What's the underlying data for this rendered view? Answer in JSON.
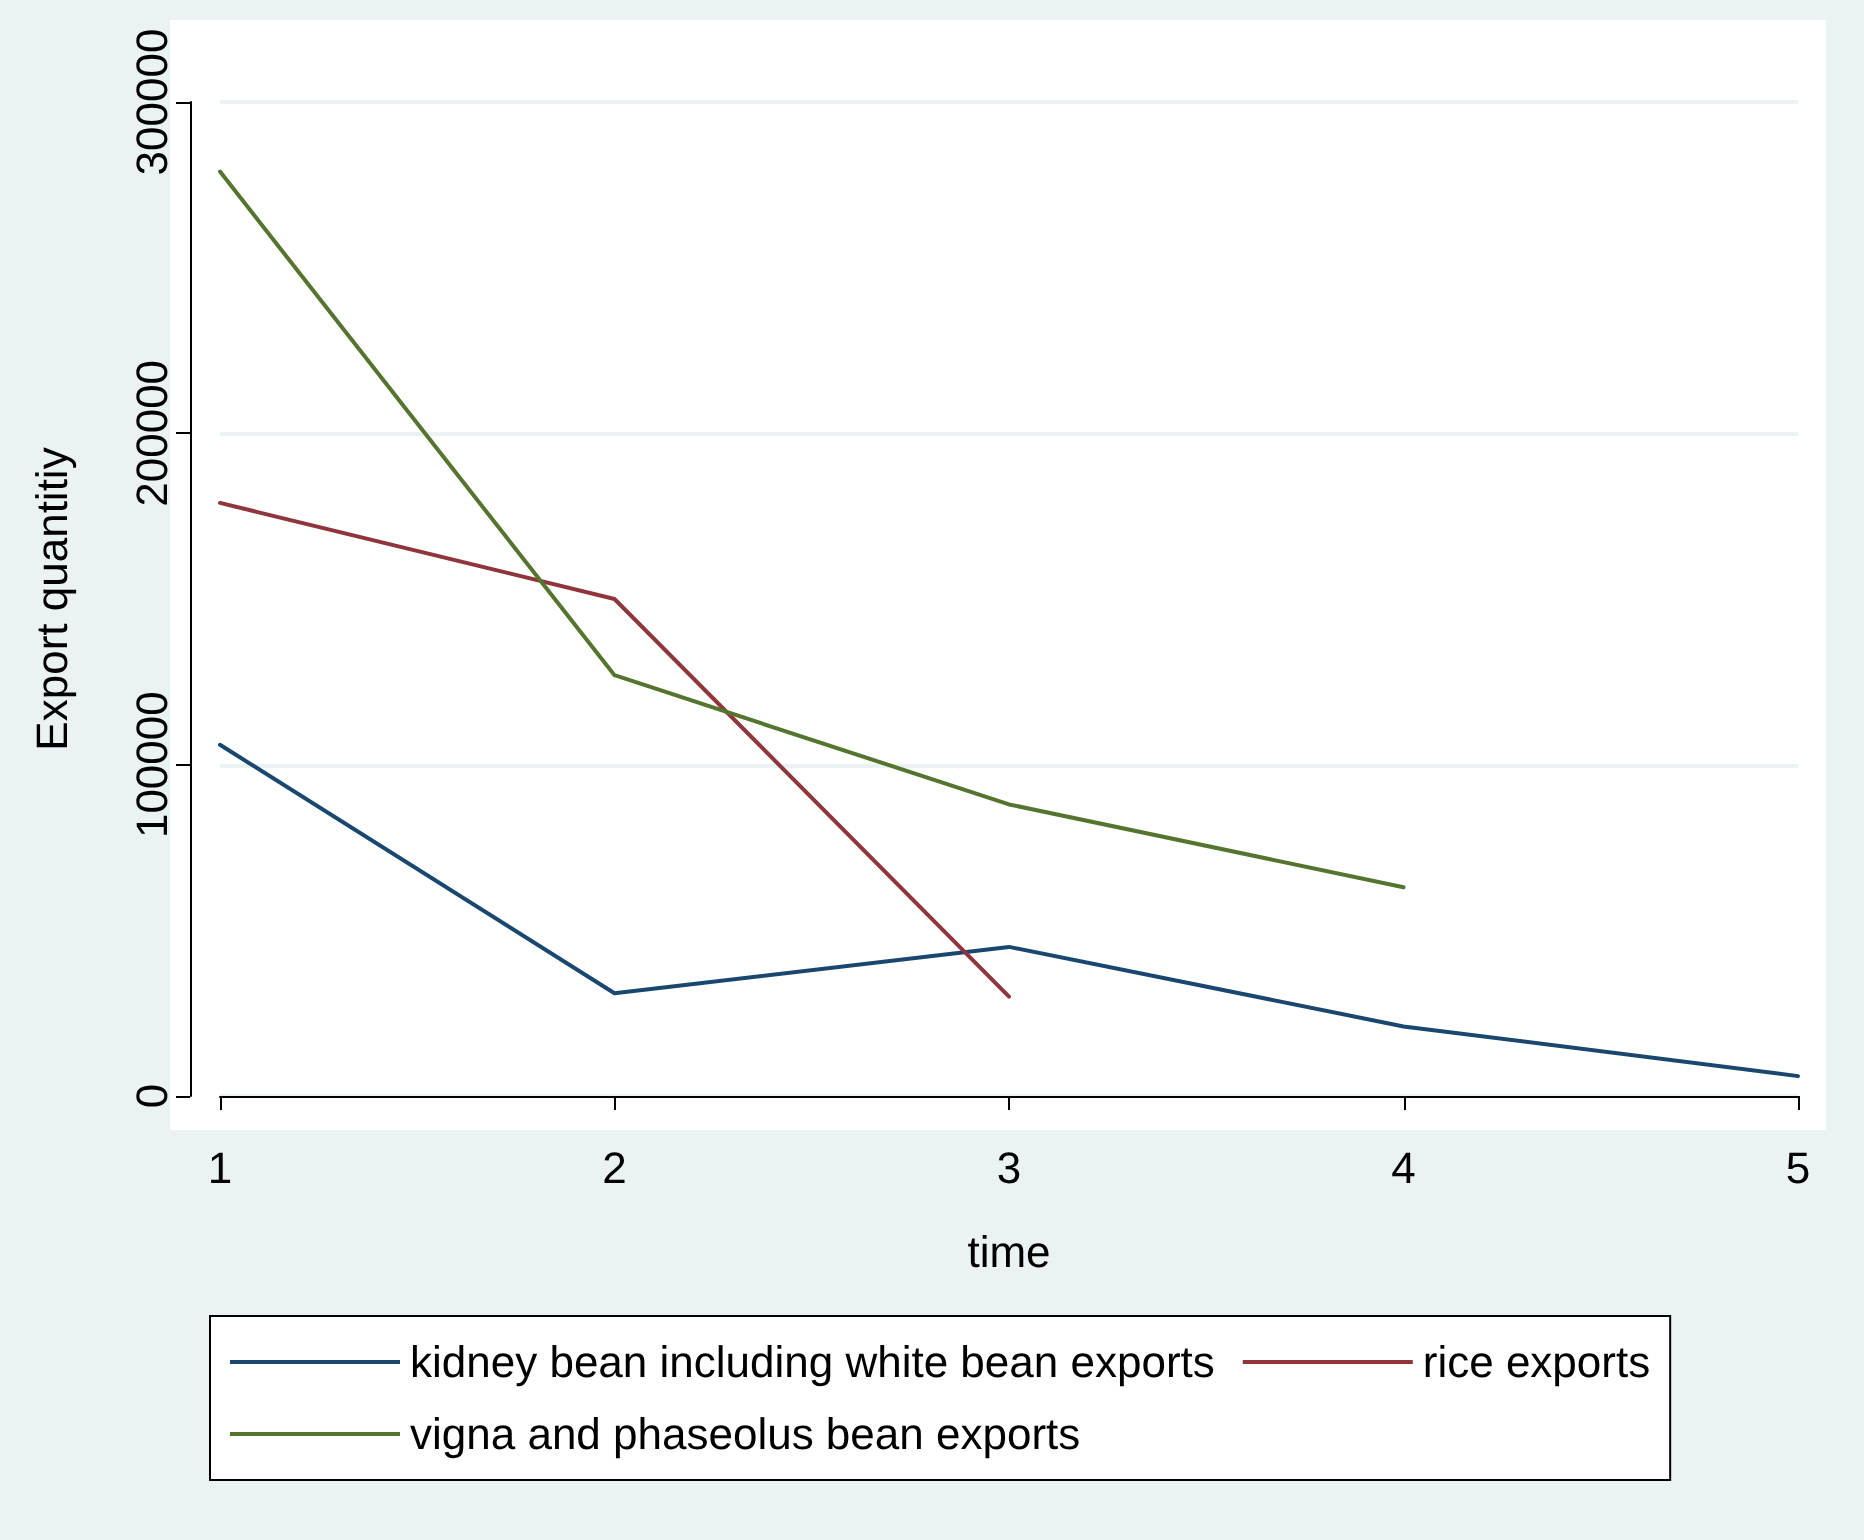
{
  "chart_data": {
    "type": "line",
    "xlabel": "time",
    "ylabel": "Export quantitiy",
    "x": [
      1,
      2,
      3,
      4,
      5
    ],
    "series": [
      {
        "name": "kidney bean including white bean exports",
        "color": "#1a476f",
        "values": [
          106000,
          31000,
          45000,
          21000,
          6000
        ]
      },
      {
        "name": "rice exports",
        "color": "#90353b",
        "values": [
          179000,
          150000,
          30000,
          null,
          null
        ]
      },
      {
        "name": "vigna and phaseolus bean exports",
        "color": "#55752f",
        "values": [
          279000,
          127000,
          88000,
          63000,
          null
        ]
      }
    ],
    "xlim": [
      1,
      5
    ],
    "xticks": [
      1,
      2,
      3,
      4,
      5
    ],
    "ylim": [
      0,
      300000
    ],
    "yticks": [
      0,
      100000,
      200000,
      300000
    ],
    "grid": "y",
    "legend": "bottom",
    "marker": "none",
    "line_style": "solid"
  }
}
